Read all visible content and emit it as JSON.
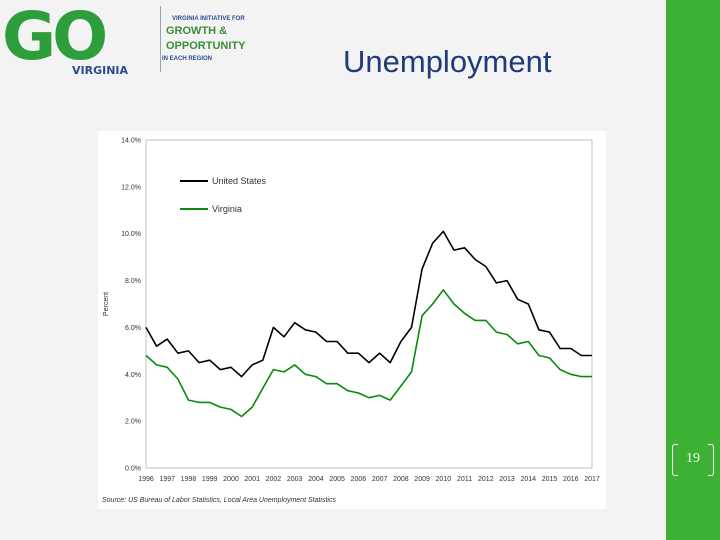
{
  "logo": {
    "brand": "GO",
    "state": "VIRGINIA",
    "tagline_top": "VIRGINIA INITIATIVE FOR",
    "tagline_line1": "GROWTH &",
    "tagline_line2": "OPPORTUNITY",
    "tagline_bottom": "IN EACH REGION"
  },
  "slide": {
    "title": "Unemployment",
    "page_number": "19"
  },
  "colors": {
    "us": "#000000",
    "va": "#0a8a0a",
    "accent": "#3db134",
    "title": "#1f3c7a"
  },
  "chart_data": {
    "type": "line",
    "ylabel": "Percent",
    "source": "Source: US Bureau of Labor Statistics, Local Area Unemployment Statistics",
    "ylim": [
      0,
      14
    ],
    "y_ticks": [
      "0.0%",
      "2.0%",
      "4.0%",
      "6.0%",
      "8.0%",
      "10.0%",
      "12.0%",
      "14.0%"
    ],
    "x_ticks": [
      "1996",
      "1997",
      "1998",
      "1999",
      "2000",
      "2001",
      "2002",
      "2003",
      "2004",
      "2005",
      "2006",
      "2007",
      "2008",
      "2009",
      "2010",
      "2011",
      "2012",
      "2013",
      "2014",
      "2015",
      "2016",
      "2017"
    ],
    "xlim": [
      1996,
      2017
    ],
    "legend": {
      "position": "top-left"
    },
    "series": [
      {
        "name": "United States",
        "x": [
          1996.0,
          1996.5,
          1997.0,
          1997.5,
          1998.0,
          1998.5,
          1999.0,
          1999.5,
          2000.0,
          2000.5,
          2001.0,
          2001.5,
          2002.0,
          2002.5,
          2003.0,
          2003.5,
          2004.0,
          2004.5,
          2005.0,
          2005.5,
          2006.0,
          2006.5,
          2007.0,
          2007.5,
          2008.0,
          2008.5,
          2009.0,
          2009.5,
          2010.0,
          2010.5,
          2011.0,
          2011.5,
          2012.0,
          2012.5,
          2013.0,
          2013.5,
          2014.0,
          2014.5,
          2015.0,
          2015.5,
          2016.0,
          2016.5,
          2017.0
        ],
        "values": [
          6.0,
          5.2,
          5.5,
          4.9,
          5.0,
          4.5,
          4.6,
          4.2,
          4.3,
          3.9,
          4.4,
          4.6,
          6.0,
          5.6,
          6.2,
          5.9,
          5.8,
          5.4,
          5.4,
          4.9,
          4.9,
          4.5,
          4.9,
          4.5,
          5.4,
          6.0,
          8.5,
          9.6,
          10.1,
          9.3,
          9.4,
          8.9,
          8.6,
          7.9,
          8.0,
          7.2,
          7.0,
          5.9,
          5.8,
          5.1,
          5.1,
          4.8,
          4.8
        ]
      },
      {
        "name": "Virginia",
        "x": [
          1996.0,
          1996.5,
          1997.0,
          1997.5,
          1998.0,
          1998.5,
          1999.0,
          1999.5,
          2000.0,
          2000.5,
          2001.0,
          2001.5,
          2002.0,
          2002.5,
          2003.0,
          2003.5,
          2004.0,
          2004.5,
          2005.0,
          2005.5,
          2006.0,
          2006.5,
          2007.0,
          2007.5,
          2008.0,
          2008.5,
          2009.0,
          2009.5,
          2010.0,
          2010.5,
          2011.0,
          2011.5,
          2012.0,
          2012.5,
          2013.0,
          2013.5,
          2014.0,
          2014.5,
          2015.0,
          2015.5,
          2016.0,
          2016.5,
          2017.0
        ],
        "values": [
          4.8,
          4.4,
          4.3,
          3.8,
          2.9,
          2.8,
          2.8,
          2.6,
          2.5,
          2.2,
          2.6,
          3.4,
          4.2,
          4.1,
          4.4,
          4.0,
          3.9,
          3.6,
          3.6,
          3.3,
          3.2,
          3.0,
          3.1,
          2.9,
          3.5,
          4.1,
          6.5,
          7.0,
          7.6,
          7.0,
          6.6,
          6.3,
          6.3,
          5.8,
          5.7,
          5.3,
          5.4,
          4.8,
          4.7,
          4.2,
          4.0,
          3.9,
          3.9
        ]
      }
    ]
  }
}
